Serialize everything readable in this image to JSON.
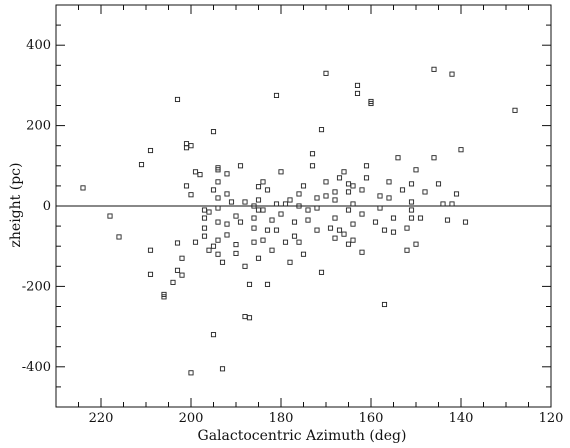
{
  "chart_data": {
    "type": "scatter",
    "title": "",
    "xlabel": "Galactocentric Azimuth (deg)",
    "ylabel": "zheight (pc)",
    "xlim": [
      230,
      120
    ],
    "ylim": [
      -500,
      500
    ],
    "x_ticks": [
      220,
      200,
      180,
      160,
      140,
      120
    ],
    "y_ticks": [
      400,
      200,
      0,
      -200,
      -400
    ],
    "reference_line_y": 0,
    "marker": "open-square",
    "points": [
      [
        224,
        45
      ],
      [
        218,
        -25
      ],
      [
        216,
        -77
      ],
      [
        211,
        103
      ],
      [
        209,
        138
      ],
      [
        209,
        -110
      ],
      [
        209,
        -170
      ],
      [
        206,
        -220
      ],
      [
        206,
        -226
      ],
      [
        204,
        -190
      ],
      [
        203,
        265
      ],
      [
        203,
        -160
      ],
      [
        202,
        -130
      ],
      [
        202,
        -172
      ],
      [
        201,
        145
      ],
      [
        201,
        155
      ],
      [
        200,
        150
      ],
      [
        201,
        50
      ],
      [
        200,
        28
      ],
      [
        199,
        85
      ],
      [
        200,
        -415
      ],
      [
        199,
        -90
      ],
      [
        198,
        78
      ],
      [
        197,
        -10
      ],
      [
        197,
        -30
      ],
      [
        197,
        -55
      ],
      [
        197,
        -75
      ],
      [
        196,
        -15
      ],
      [
        196,
        -110
      ],
      [
        195,
        -320
      ],
      [
        195,
        -100
      ],
      [
        195,
        185
      ],
      [
        194,
        95
      ],
      [
        194,
        90
      ],
      [
        194,
        60
      ],
      [
        195,
        40
      ],
      [
        194,
        20
      ],
      [
        194,
        -5
      ],
      [
        194,
        -40
      ],
      [
        194,
        -85
      ],
      [
        194,
        -120
      ],
      [
        193,
        -405
      ],
      [
        193,
        -140
      ],
      [
        192,
        80
      ],
      [
        192,
        30
      ],
      [
        192,
        -45
      ],
      [
        192,
        -72
      ],
      [
        191,
        10
      ],
      [
        190,
        -25
      ],
      [
        190,
        -96
      ],
      [
        190,
        -118
      ],
      [
        189,
        100
      ],
      [
        188,
        -150
      ],
      [
        187,
        -195
      ],
      [
        188,
        -275
      ],
      [
        187,
        -278
      ],
      [
        186,
        0
      ],
      [
        186,
        -30
      ],
      [
        186,
        -55
      ],
      [
        186,
        -90
      ],
      [
        185,
        15
      ],
      [
        184,
        -10
      ],
      [
        185,
        -130
      ],
      [
        184,
        60
      ],
      [
        184,
        -85
      ],
      [
        183,
        40
      ],
      [
        183,
        -195
      ],
      [
        182,
        -35
      ],
      [
        182,
        -110
      ],
      [
        181,
        5
      ],
      [
        181,
        -60
      ],
      [
        180,
        85
      ],
      [
        181,
        275
      ],
      [
        180,
        -20
      ],
      [
        179,
        -90
      ],
      [
        178,
        15
      ],
      [
        178,
        -140
      ],
      [
        177,
        -40
      ],
      [
        177,
        -75
      ],
      [
        176,
        30
      ],
      [
        176,
        0
      ],
      [
        175,
        50
      ],
      [
        175,
        -120
      ],
      [
        174,
        -35
      ],
      [
        174,
        -10
      ],
      [
        173,
        100
      ],
      [
        173,
        130
      ],
      [
        172,
        -5
      ],
      [
        172,
        20
      ],
      [
        171,
        -165
      ],
      [
        171,
        190
      ],
      [
        170,
        330
      ],
      [
        170,
        25
      ],
      [
        169,
        -55
      ],
      [
        168,
        15
      ],
      [
        168,
        -30
      ],
      [
        168,
        -80
      ],
      [
        167,
        70
      ],
      [
        167,
        -60
      ],
      [
        166,
        85
      ],
      [
        166,
        -70
      ],
      [
        165,
        55
      ],
      [
        165,
        35
      ],
      [
        165,
        -10
      ],
      [
        164,
        50
      ],
      [
        164,
        5
      ],
      [
        164,
        -45
      ],
      [
        164,
        -85
      ],
      [
        163,
        300
      ],
      [
        163,
        280
      ],
      [
        162,
        40
      ],
      [
        162,
        -20
      ],
      [
        162,
        -115
      ],
      [
        161,
        100
      ],
      [
        161,
        70
      ],
      [
        160,
        260
      ],
      [
        160,
        255
      ],
      [
        159,
        -40
      ],
      [
        158,
        25
      ],
      [
        158,
        -5
      ],
      [
        157,
        -60
      ],
      [
        157,
        -245
      ],
      [
        156,
        60
      ],
      [
        156,
        20
      ],
      [
        155,
        -30
      ],
      [
        155,
        -65
      ],
      [
        154,
        120
      ],
      [
        153,
        40
      ],
      [
        152,
        -55
      ],
      [
        152,
        -110
      ],
      [
        151,
        10
      ],
      [
        151,
        -10
      ],
      [
        150,
        90
      ],
      [
        149,
        -30
      ],
      [
        148,
        35
      ],
      [
        146,
        120
      ],
      [
        145,
        55
      ],
      [
        144,
        5
      ],
      [
        143,
        -35
      ],
      [
        142,
        5
      ],
      [
        141,
        30
      ],
      [
        140,
        140
      ],
      [
        139,
        -40
      ],
      [
        151,
        55
      ],
      [
        150,
        -95
      ],
      [
        151,
        -30
      ],
      [
        146,
        340
      ],
      [
        142,
        328
      ],
      [
        128,
        238
      ],
      [
        203,
        -92
      ],
      [
        188,
        10
      ],
      [
        185,
        48
      ],
      [
        183,
        -60
      ],
      [
        179,
        5
      ],
      [
        176,
        -90
      ],
      [
        172,
        -60
      ],
      [
        170,
        60
      ],
      [
        168,
        35
      ],
      [
        165,
        -95
      ],
      [
        189,
        -40
      ],
      [
        185,
        -10
      ]
    ]
  }
}
